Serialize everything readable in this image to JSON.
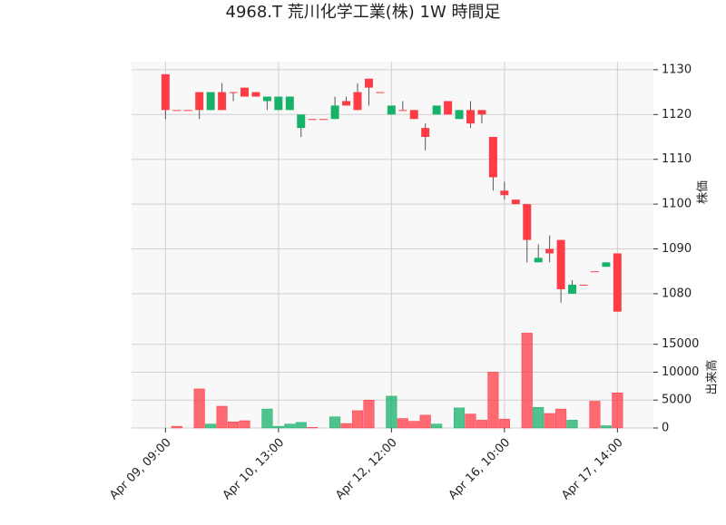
{
  "chart_data": {
    "type": "candlestick",
    "title": "4968.T 荒川化学工業(株) 1W 時間足",
    "ylabel": "株価",
    "y2label": "出来高",
    "categories": [
      "Apr 09, 09:00",
      null,
      null,
      null,
      null,
      null,
      null,
      null,
      null,
      null,
      "Apr 10, 13:00",
      null,
      null,
      null,
      null,
      null,
      null,
      null,
      null,
      null,
      "Apr 12, 12:00",
      null,
      null,
      null,
      null,
      null,
      null,
      null,
      null,
      null,
      "Apr 16, 10:00",
      null,
      null,
      null,
      null,
      null,
      null,
      null,
      null,
      null,
      "Apr 17, 14:00"
    ],
    "open": [
      1129,
      1121,
      1121,
      1125,
      1121,
      1125,
      1125,
      1126,
      1125,
      1123,
      1121,
      1121,
      1117,
      1119,
      1119,
      1119,
      1123,
      1125,
      1128,
      1125,
      1120,
      1121,
      1121,
      1117,
      1120,
      1123,
      1119,
      1121,
      1121,
      1115,
      1103,
      1101,
      1100,
      1087,
      1090,
      1092,
      1080,
      1082,
      1085,
      1086,
      1089
    ],
    "high": [
      1129,
      1121,
      1121,
      1125,
      1125,
      1127,
      1125,
      1126,
      1125,
      1124,
      1124,
      1124,
      1120,
      1119,
      1119,
      1124,
      1124,
      1127,
      1128,
      1125,
      1122,
      1123,
      1121,
      1118,
      1122,
      1123,
      1121,
      1123,
      1121,
      1115,
      1105,
      1101,
      1100,
      1091,
      1093,
      1092,
      1083,
      1082,
      1085,
      1087,
      1089
    ],
    "low": [
      1119,
      1121,
      1121,
      1119,
      1121,
      1121,
      1123,
      1124,
      1124,
      1121,
      1121,
      1121,
      1115,
      1119,
      1119,
      1119,
      1122,
      1121,
      1122,
      1125,
      1120,
      1121,
      1119,
      1112,
      1120,
      1120,
      1119,
      1117,
      1118,
      1103,
      1101,
      1100,
      1087,
      1087,
      1087,
      1078,
      1080,
      1082,
      1085,
      1086,
      1076
    ],
    "close": [
      1121,
      1121,
      1121,
      1121,
      1125,
      1121,
      1125,
      1124,
      1124,
      1124,
      1124,
      1124,
      1120,
      1119,
      1119,
      1122,
      1122,
      1121,
      1126,
      1125,
      1122,
      1121,
      1119,
      1115,
      1122,
      1120,
      1121,
      1118,
      1120,
      1106,
      1102,
      1100,
      1092,
      1088,
      1089,
      1081,
      1082,
      1082,
      1085,
      1087,
      1076
    ],
    "volume": [
      0,
      300,
      0,
      7000,
      700,
      3900,
      1100,
      1300,
      0,
      3400,
      300,
      700,
      1000,
      100,
      0,
      2000,
      800,
      3100,
      5000,
      0,
      5700,
      1700,
      1200,
      2300,
      700,
      0,
      3600,
      2500,
      1400,
      10000,
      1600,
      0,
      17000,
      3700,
      2600,
      3400,
      1400,
      0,
      4800,
      400,
      6300
    ],
    "up_color": "#17b26a",
    "down_color": "#ff3b46",
    "ylim": [
      1073.3,
      1131.8
    ],
    "yticks": [
      1080,
      1090,
      1100,
      1110,
      1120,
      1130
    ],
    "y2lim": [
      0,
      18200
    ],
    "y2ticks": [
      0,
      5000,
      10000,
      15000
    ],
    "grid": true
  }
}
